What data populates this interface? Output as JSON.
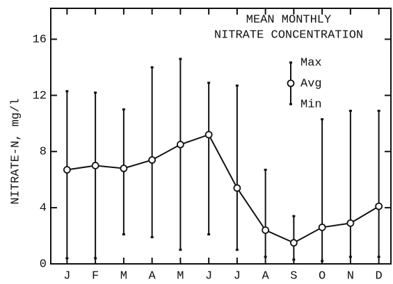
{
  "chart_data": {
    "type": "errorline",
    "title": [
      "MEAN MONTHLY",
      "NITRATE CONCENTRATION"
    ],
    "y_label": "NITRATE-N, mg/l",
    "categories": [
      "J",
      "F",
      "M",
      "A",
      "M",
      "J",
      "J",
      "A",
      "S",
      "O",
      "N",
      "D"
    ],
    "series": [
      {
        "name": "Max",
        "color": "#111111",
        "values": [
          12.3,
          12.2,
          11.0,
          14.0,
          14.6,
          12.9,
          12.7,
          6.7,
          3.4,
          10.3,
          10.9,
          10.9
        ]
      },
      {
        "name": "Avg",
        "color": "#111111",
        "values": [
          6.7,
          7.0,
          6.8,
          7.4,
          8.5,
          9.2,
          5.4,
          2.4,
          1.5,
          2.6,
          2.9,
          4.1
        ]
      },
      {
        "name": "Min",
        "color": "#111111",
        "values": [
          0.4,
          0.4,
          2.1,
          1.9,
          1.0,
          2.1,
          1.0,
          0.5,
          0.3,
          0.2,
          0.5,
          0.5
        ]
      }
    ],
    "ylim": [
      0,
      18.2
    ],
    "yticks": [
      0,
      4,
      8,
      12,
      16
    ]
  }
}
